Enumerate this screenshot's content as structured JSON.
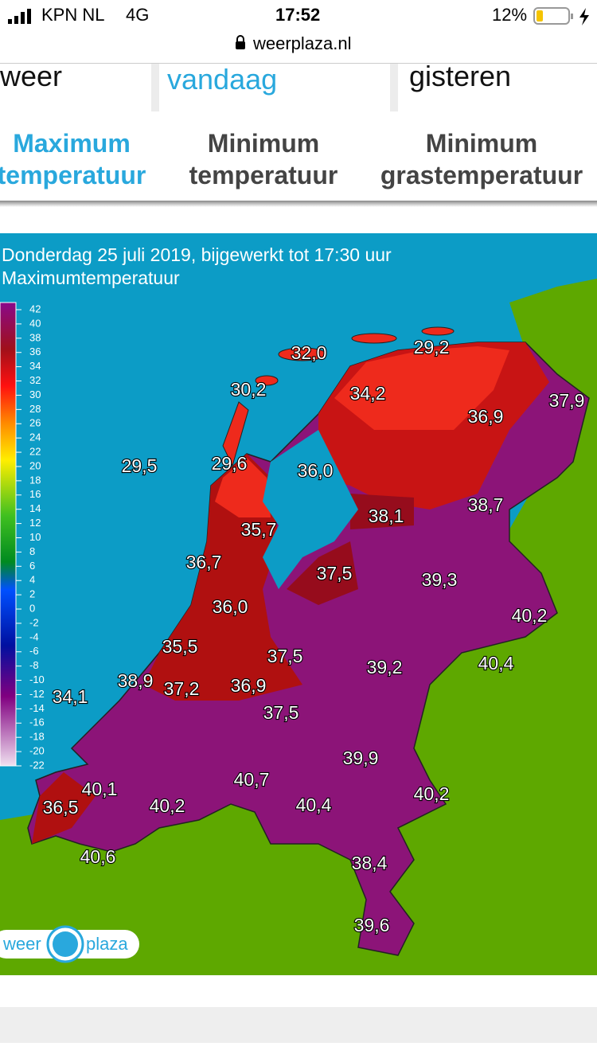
{
  "status_bar": {
    "carrier": "KPN NL",
    "network": "4G",
    "time": "17:52",
    "battery": "12%",
    "url": "weerplaza.nl"
  },
  "tabs": [
    "weer",
    "vandaag",
    "gisteren"
  ],
  "subtabs": [
    [
      "Maximum",
      "temperatuur"
    ],
    [
      "Minimum",
      "temperatuur"
    ],
    [
      "Minimum",
      "grastemperatuur"
    ]
  ],
  "map": {
    "title": "Donderdag 25 juli 2019, bijgewerkt tot 17:30 uur",
    "subtitle": "Maximumtemperatuur",
    "legend": [
      42,
      40,
      38,
      36,
      34,
      32,
      30,
      28,
      26,
      24,
      22,
      20,
      18,
      16,
      14,
      12,
      10,
      8,
      6,
      4,
      2,
      0,
      -2,
      -4,
      -6,
      -8,
      -10,
      -12,
      -14,
      -16,
      -18,
      -20,
      -22
    ],
    "labels": [
      "32,0",
      "29,2",
      "30,2",
      "34,2",
      "37,9",
      "36,9",
      "29,5",
      "29,6",
      "36,0",
      "38,1",
      "38,7",
      "35,7",
      "36,7",
      "37,5",
      "39,3",
      "36,0",
      "40,2",
      "35,5",
      "37,5",
      "39,2",
      "40,4",
      "38,9",
      "37,2",
      "36,9",
      "34,1",
      "37,5",
      "39,9",
      "40,7",
      "40,1",
      "40,4",
      "40,2",
      "36,5",
      "40,2",
      "40,6",
      "38,4",
      "39,6"
    ],
    "logo": [
      "weer",
      "plaza"
    ]
  }
}
